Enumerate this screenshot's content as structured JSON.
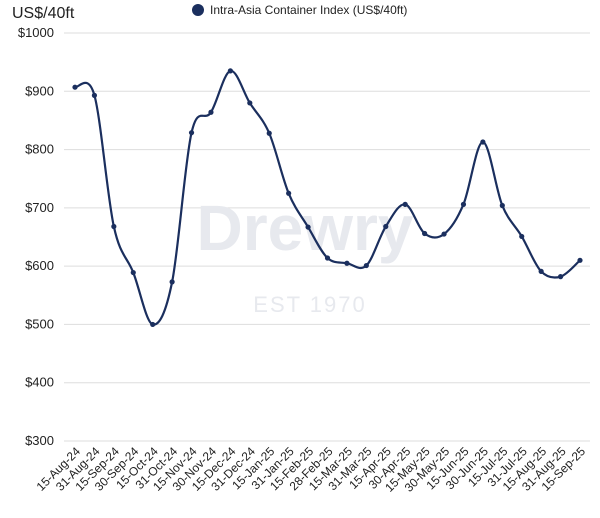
{
  "chart_data": {
    "type": "line",
    "ylabel": "US$/40ft",
    "ylim": [
      300,
      1000
    ],
    "yticks": [
      300,
      400,
      500,
      600,
      700,
      800,
      900,
      1000
    ],
    "ytick_labels": [
      "$300",
      "$400",
      "$500",
      "$600",
      "$700",
      "$800",
      "$900",
      "$1000"
    ],
    "grid": true,
    "legend_position": "top",
    "categories": [
      "15-Aug-24",
      "31-Aug-24",
      "15-Sep-24",
      "30-Sep-24",
      "15-Oct-24",
      "31-Oct-24",
      "15-Nov-24",
      "30-Nov-24",
      "15-Dec-24",
      "31-Dec-24",
      "15-Jan-25",
      "31-Jan-25",
      "15-Feb-25",
      "28-Feb-25",
      "15-Mar-25",
      "31-Mar-25",
      "15-Apr-25",
      "30-Apr-25",
      "15-May-25",
      "30-May-25",
      "15-Jun-25",
      "30-Jun-25",
      "15-Jul-25",
      "31-Jul-25",
      "15-Aug-25",
      "31-Aug-25",
      "15-Sep-25"
    ],
    "series": [
      {
        "name": "Intra-Asia Container Index (US$/40ft)",
        "color": "#1b2f5e",
        "values": [
          907,
          893,
          668,
          589,
          500,
          573,
          829,
          864,
          935,
          880,
          828,
          725,
          667,
          614,
          605,
          601,
          668,
          706,
          656,
          655,
          706,
          813,
          704,
          651,
          591,
          582,
          610
        ]
      }
    ]
  },
  "watermark": {
    "brand": "Drewry",
    "tagline": "EST 1970"
  }
}
